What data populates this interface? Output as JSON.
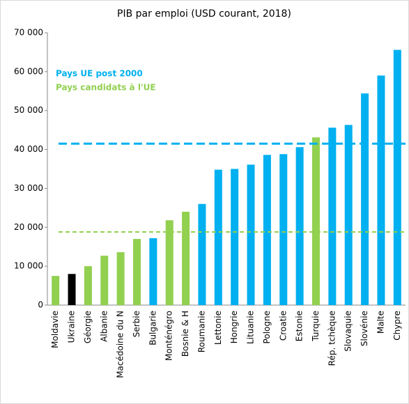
{
  "chart_data": {
    "type": "bar",
    "title": "PIB par emploi (USD courant, 2018)",
    "categories": [
      "Moldavie",
      "Ukraine",
      "Géorgie",
      "Albanie",
      "Macédoine du N",
      "Serbie",
      "Bulgarie",
      "Monténégro",
      "Bosnie & H",
      "Roumanie",
      "Lettonie",
      "Hongrie",
      "Lituanie",
      "Pologne",
      "Croatie",
      "Estonie",
      "Turquie",
      "Rép. tchèque",
      "Slovaquie",
      "Slovénie",
      "Malte",
      "Chypre"
    ],
    "values": [
      7500,
      8000,
      10000,
      12700,
      13600,
      17000,
      17200,
      21800,
      24000,
      26000,
      34800,
      35000,
      36100,
      38600,
      38800,
      40600,
      43100,
      45600,
      46300,
      54400,
      59000,
      65600
    ],
    "colors": [
      "#92d050",
      "#000000",
      "#92d050",
      "#92d050",
      "#92d050",
      "#92d050",
      "#00b0f0",
      "#92d050",
      "#92d050",
      "#00b0f0",
      "#00b0f0",
      "#00b0f0",
      "#00b0f0",
      "#00b0f0",
      "#00b0f0",
      "#00b0f0",
      "#92d050",
      "#00b0f0",
      "#00b0f0",
      "#00b0f0",
      "#00b0f0",
      "#00b0f0"
    ],
    "reference_lines": [
      {
        "name": "Pays UE post 2000",
        "value": 41500,
        "color": "#00b0f0"
      },
      {
        "name": "Pays candidats à l'UE",
        "value": 18800,
        "color": "#92d050"
      }
    ],
    "ylim": [
      0,
      70000
    ],
    "yticks": [
      0,
      {
        "value": 10000,
        "label": "10 000"
      },
      {
        "value": 20000,
        "label": "20 000"
      },
      {
        "value": 30000,
        "label": "30 000"
      },
      {
        "value": 40000,
        "label": "40 000"
      },
      {
        "value": 50000,
        "label": "50 000"
      },
      {
        "value": 60000,
        "label": "60 000"
      },
      {
        "value": 70000,
        "label": "70 000"
      }
    ],
    "grid": false
  }
}
